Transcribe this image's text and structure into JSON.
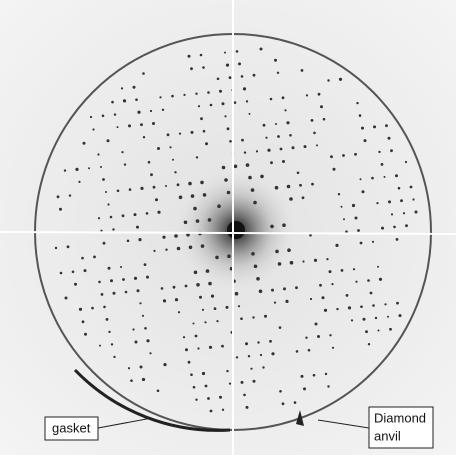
{
  "annotations": [
    {
      "text": "gasket"
    },
    {
      "lines": [
        "Diamond",
        "anvil"
      ]
    }
  ]
}
